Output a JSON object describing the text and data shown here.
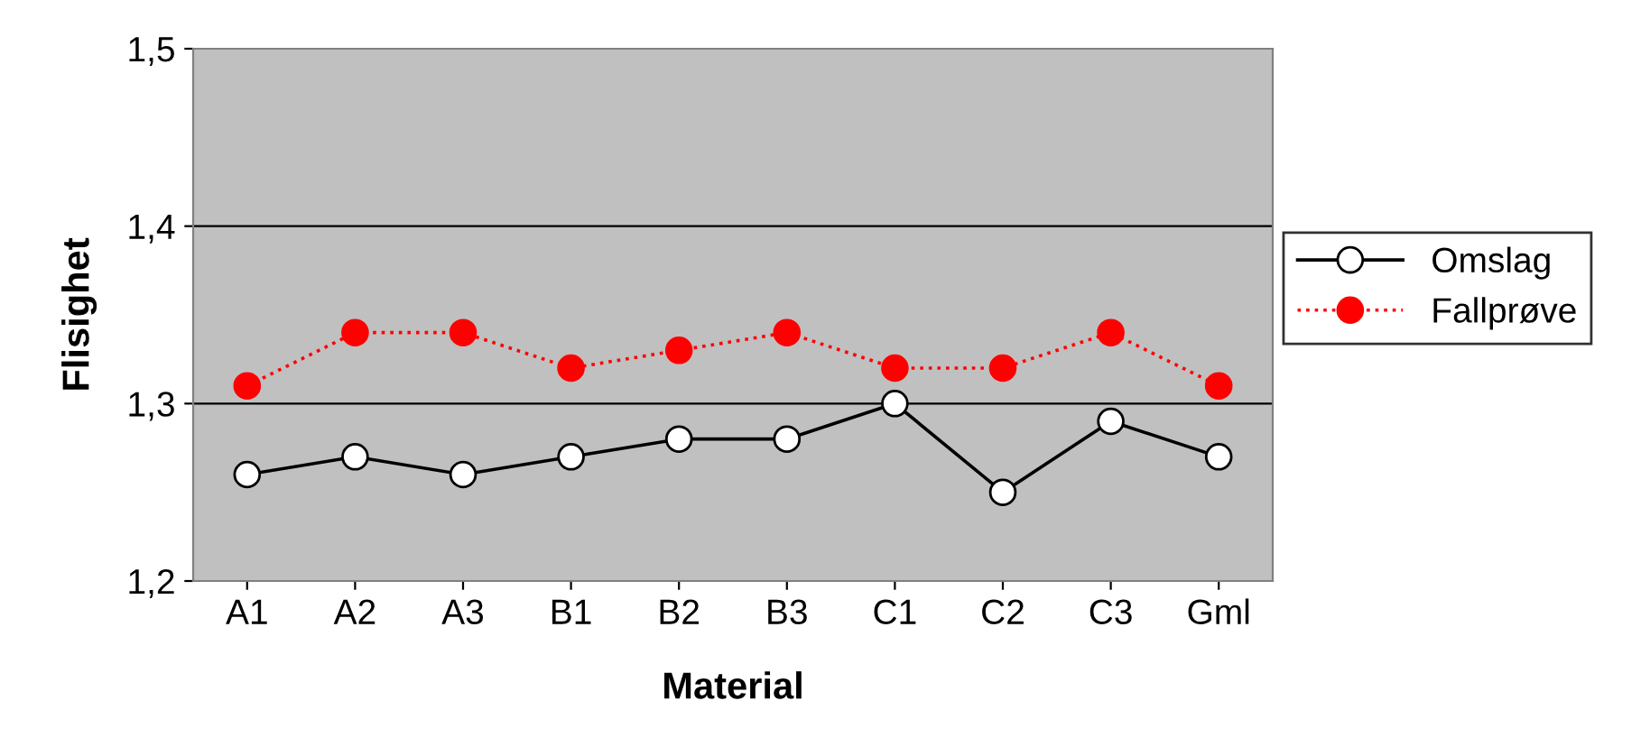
{
  "chart_data": {
    "type": "line",
    "xlabel": "Material",
    "ylabel": "Flisighet",
    "categories": [
      "A1",
      "A2",
      "A3",
      "B1",
      "B2",
      "B3",
      "C1",
      "C2",
      "C3",
      "Gml"
    ],
    "series": [
      {
        "name": "Omslag",
        "color": "#000000",
        "marker": "circle",
        "line_style": "solid",
        "values": [
          1.26,
          1.27,
          1.26,
          1.27,
          1.28,
          1.28,
          1.3,
          1.25,
          1.29,
          1.27
        ]
      },
      {
        "name": "Fallprøve",
        "color": "#ff0000",
        "marker": "circle",
        "line_style": "dotted",
        "values": [
          1.31,
          1.34,
          1.34,
          1.32,
          1.33,
          1.34,
          1.32,
          1.32,
          1.34,
          1.31
        ]
      }
    ],
    "ylim": [
      1.2,
      1.5
    ],
    "yticks": [
      {
        "value": 1.2,
        "label": "1,2"
      },
      {
        "value": 1.3,
        "label": "1,3"
      },
      {
        "value": 1.4,
        "label": "1,4"
      },
      {
        "value": 1.5,
        "label": "1,5"
      }
    ],
    "grid": "y",
    "legend": "right"
  }
}
